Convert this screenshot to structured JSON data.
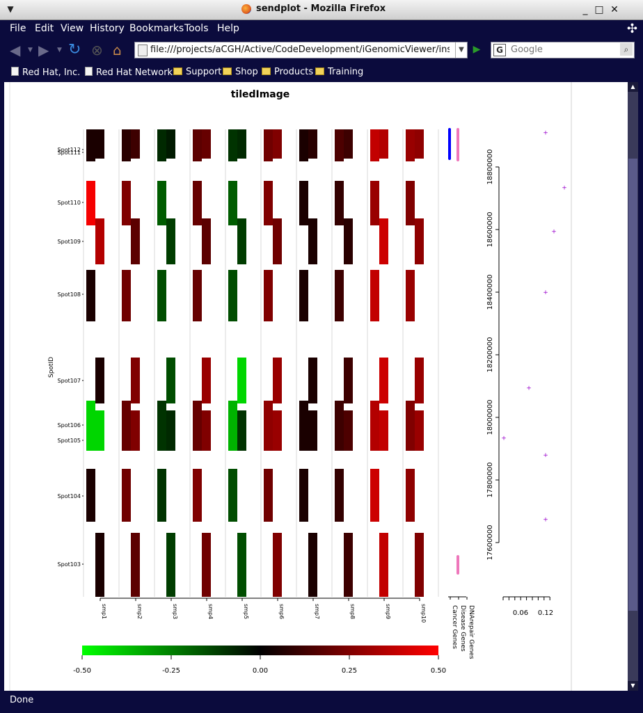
{
  "window": {
    "title": "sendplot - Mozilla Firefox"
  },
  "menu": [
    "File",
    "Edit",
    "View",
    "History",
    "Bookmarks",
    "Tools",
    "Help"
  ],
  "nav": {
    "url": "file:///projects/aCGH/Active/CodeDevelopment/iGenomicViewer/inst/doc/t",
    "search_placeholder": "Google"
  },
  "bookmarks": [
    {
      "label": "Red Hat, Inc.",
      "icon": "page-icon"
    },
    {
      "label": "Red Hat Network",
      "icon": "page-icon"
    },
    {
      "label": "Support",
      "icon": "folder-icon"
    },
    {
      "label": "Shop",
      "icon": "folder-icon"
    },
    {
      "label": "Products",
      "icon": "folder-icon"
    },
    {
      "label": "Training",
      "icon": "folder-icon"
    }
  ],
  "status": "Done",
  "colors": {
    "chrome": "#0b0b3d",
    "low": "#00ff00",
    "mid": "#000000",
    "high": "#ff0000",
    "pink": "#ee77bb",
    "blue": "#0000ff",
    "marker": "#9900cc"
  },
  "chart_data": [
    {
      "type": "heatmap",
      "title": "tiledImage",
      "ylabel": "SpotID",
      "samples": [
        "smp1",
        "smp2",
        "smp3",
        "smp4",
        "smp5",
        "smp6",
        "smp7",
        "smp8",
        "smp9",
        "smp10"
      ],
      "spots": [
        "Spot112",
        "Spot111",
        "Spot110",
        "Spot109",
        "Spot108",
        "Spot107",
        "Spot106",
        "Spot105",
        "Spot104",
        "Spot103"
      ],
      "values": [
        [
          0.05,
          0.08,
          -0.08,
          0.18,
          -0.1,
          0.22,
          0.05,
          0.15,
          0.38,
          0.3
        ],
        [
          0.05,
          0.12,
          -0.05,
          0.2,
          -0.08,
          0.25,
          0.08,
          0.12,
          0.35,
          0.28
        ],
        [
          0.48,
          0.25,
          -0.18,
          0.2,
          -0.18,
          0.25,
          0.05,
          0.1,
          0.3,
          0.25
        ],
        [
          0.35,
          0.18,
          -0.12,
          0.18,
          -0.12,
          0.22,
          0.05,
          0.08,
          0.4,
          0.28
        ],
        [
          0.05,
          0.22,
          -0.15,
          0.2,
          -0.15,
          0.25,
          0.05,
          0.12,
          0.38,
          0.3
        ],
        [
          0.05,
          0.25,
          -0.15,
          0.3,
          -0.42,
          0.3,
          0.05,
          0.12,
          0.4,
          0.3
        ],
        [
          -0.42,
          0.2,
          -0.1,
          0.2,
          -0.35,
          0.28,
          0.05,
          0.12,
          0.35,
          0.25
        ],
        [
          -0.42,
          0.25,
          -0.08,
          0.25,
          -0.1,
          0.3,
          0.05,
          0.15,
          0.38,
          0.3
        ],
        [
          0.05,
          0.22,
          -0.1,
          0.25,
          -0.15,
          0.22,
          0.05,
          0.1,
          0.4,
          0.28
        ],
        [
          0.05,
          0.18,
          -0.12,
          0.22,
          -0.15,
          0.25,
          0.05,
          0.12,
          0.38,
          0.25
        ]
      ],
      "annotation_tracks": [
        "Cancer Genes",
        "Disease Genes",
        "DNArepair Genes"
      ],
      "colorbar": {
        "ticks": [
          "-0.50",
          "-0.25",
          "0.00",
          "0.25",
          "0.50"
        ],
        "range": [
          -0.5,
          0.5
        ]
      }
    },
    {
      "type": "scatter",
      "xticks": [
        "0.06",
        "0.12"
      ],
      "yticks": [
        "17600000",
        "17800000",
        "18000000",
        "18200000",
        "18400000",
        "18600000",
        "18800000"
      ],
      "points": [
        {
          "x": 0.12,
          "y": 18910000
        },
        {
          "x": 0.165,
          "y": 18735000
        },
        {
          "x": 0.14,
          "y": 18595000
        },
        {
          "x": 0.12,
          "y": 18400000
        },
        {
          "x": 0.08,
          "y": 18095000
        },
        {
          "x": 0.02,
          "y": 17935000
        },
        {
          "x": 0.12,
          "y": 17880000
        },
        {
          "x": 0.12,
          "y": 17675000
        }
      ]
    }
  ]
}
